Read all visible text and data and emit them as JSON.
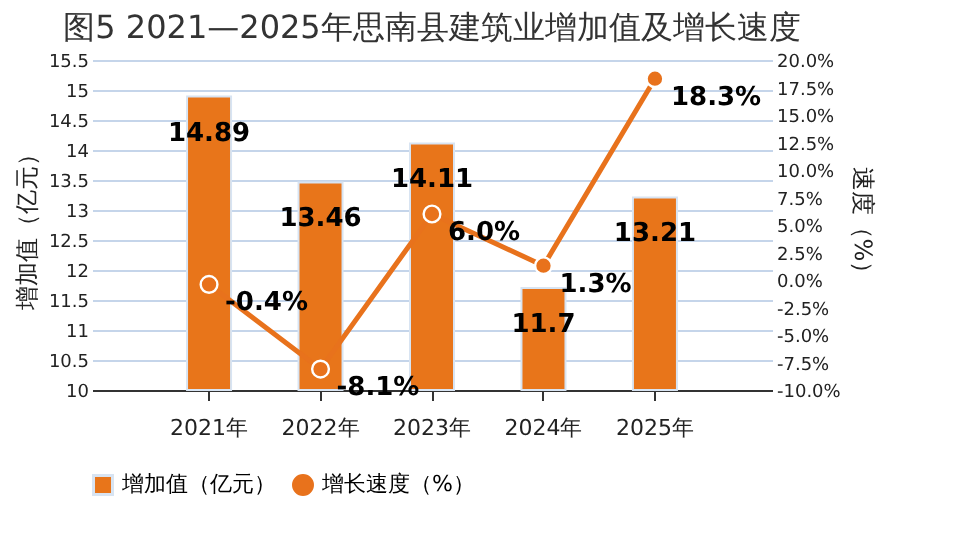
{
  "chart_data": {
    "type": "bar",
    "title": "图5  2021—2025年思南县建筑业增加值及增长速度",
    "categories": [
      "2021年",
      "2022年",
      "2023年",
      "2024年",
      "2025年"
    ],
    "series": [
      {
        "name": "增加值（亿元）",
        "color": "#e8751a",
        "values": [
          14.89,
          13.46,
          14.11,
          11.7,
          13.21
        ],
        "value_labels": [
          "14.89",
          "13.46",
          "14.11",
          "11.7",
          "13.21"
        ]
      },
      {
        "name": "增长速度（%）",
        "type": "line",
        "axis": "y2",
        "color": "#e8721c",
        "values": [
          -0.4,
          -8.1,
          6.0,
          1.3,
          18.3
        ],
        "value_labels": [
          "-0.4%",
          "-8.1%",
          "6.0%",
          "1.3%",
          "18.3%"
        ]
      }
    ],
    "ylabel": "增加值（亿元）",
    "y2label": "速度（%）",
    "ylim": [
      10,
      15.5
    ],
    "yticks": [
      10,
      10.5,
      11,
      11.5,
      12,
      12.5,
      13,
      13.5,
      14,
      14.5,
      15,
      15.5
    ],
    "y2lim": [
      -10,
      20
    ],
    "y2ticks": [
      {
        "value": -10,
        "label": "-10.0%"
      },
      {
        "value": -7.5,
        "label": "-7.5%"
      },
      {
        "value": -5,
        "label": "-5.0%"
      },
      {
        "value": -2.5,
        "label": "-2.5%"
      },
      {
        "value": 0,
        "label": "0.0%"
      },
      {
        "value": 2.5,
        "label": "2.5%"
      },
      {
        "value": 5,
        "label": "5.0%"
      },
      {
        "value": 7.5,
        "label": "7.5%"
      },
      {
        "value": 10,
        "label": "10.0%"
      },
      {
        "value": 12.5,
        "label": "12.5%"
      },
      {
        "value": 15,
        "label": "15.0%"
      },
      {
        "value": 17.5,
        "label": "17.5%"
      },
      {
        "value": 20,
        "label": "20.0%"
      }
    ],
    "grid": "y",
    "legend": "bottom",
    "marker": "circle",
    "line_style": "solid"
  }
}
